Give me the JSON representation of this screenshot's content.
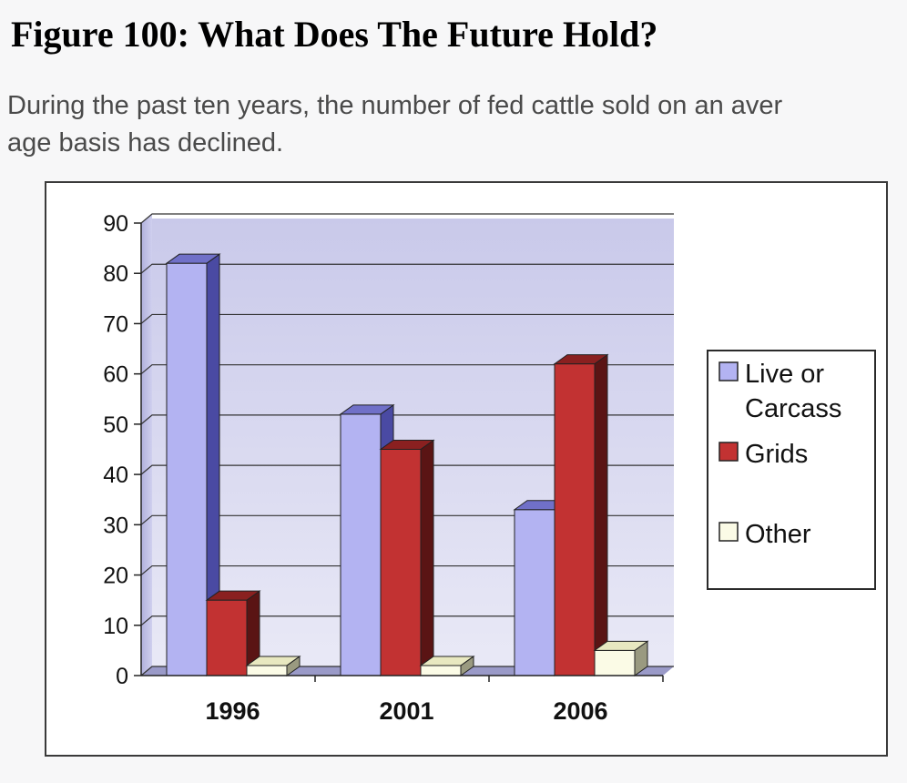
{
  "figure": {
    "title": "Figure 100: What Does The Future Hold?",
    "description_lines": [
      "During the past ten years, the number of fed cattle sold on an aver",
      "age basis has declined."
    ]
  },
  "chart_data": {
    "type": "bar",
    "categories": [
      "1996",
      "2001",
      "2006"
    ],
    "series": [
      {
        "name": "Live or Carcass",
        "legend_lines": [
          "Live or",
          "Carcass"
        ],
        "values": [
          82,
          52,
          33
        ],
        "color": "#b3b3f2",
        "side_color": "#4a4aa3",
        "top_color": "#7070c8"
      },
      {
        "name": "Grids",
        "legend_lines": [
          "Grids"
        ],
        "values": [
          15,
          45,
          62
        ],
        "color": "#c23232",
        "side_color": "#5a1414",
        "top_color": "#8a2020"
      },
      {
        "name": "Other",
        "legend_lines": [
          "Other"
        ],
        "values": [
          2,
          2,
          5
        ],
        "color": "#fbfbe6",
        "side_color": "#9a9a80",
        "top_color": "#e8e8c0"
      }
    ],
    "yticks": [
      "0",
      "10",
      "20",
      "30",
      "40",
      "50",
      "60",
      "70",
      "80",
      "90"
    ],
    "ylim": [
      0,
      90
    ],
    "grid": true,
    "legend": "right",
    "title": "",
    "xlabel": "",
    "ylabel": ""
  }
}
